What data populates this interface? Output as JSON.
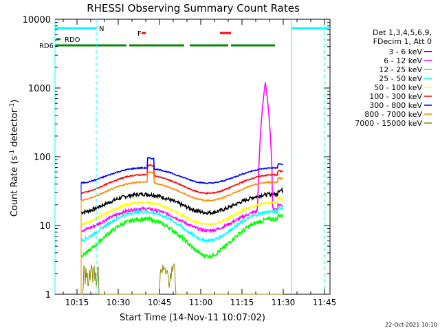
{
  "chart_data": {
    "type": "line",
    "title": "RHESSI Observing Summary Count Rates",
    "xlabel": "Start Time (14-Nov-11 10:07:02)",
    "ylabel_prefix": "Count Rate (s",
    "ylabel_sup": "-1",
    "ylabel_mid": " detector",
    "ylabel_suffix": ")",
    "x_range_minutes": [
      0,
      100
    ],
    "x_ticks": [
      {
        "min": 8,
        "label": "10:15"
      },
      {
        "min": 23,
        "label": "10:30"
      },
      {
        "min": 38,
        "label": "10:45"
      },
      {
        "min": 53,
        "label": "11:00"
      },
      {
        "min": 68,
        "label": "11:15"
      },
      {
        "min": 83,
        "label": "11:30"
      },
      {
        "min": 98,
        "label": "11:45"
      }
    ],
    "y_scale": "log",
    "y_range": [
      1,
      10000
    ],
    "y_ticks": [
      {
        "v": 1,
        "label": "1"
      },
      {
        "v": 10,
        "label": "10"
      },
      {
        "v": 100,
        "label": "100"
      },
      {
        "v": 1000,
        "label": "1000"
      },
      {
        "v": 10000,
        "label": "10000"
      }
    ],
    "legend_header": [
      "Det 1,3,4,5,6,9,",
      "FDecim 1, Att 0"
    ],
    "legend_position": "right",
    "series": [
      {
        "name": "3 - 6 keV",
        "color": "#000000",
        "base": 22,
        "amp": 0.3,
        "jit": 0.06
      },
      {
        "name": "6 - 12 keV",
        "color": "#ff00ff",
        "base": 13,
        "amp": 0.35,
        "jit": 0.05,
        "flare": 1200
      },
      {
        "name": "12 - 25 keV",
        "color": "#00ff00",
        "base": 8,
        "amp": 0.55,
        "jit": 0.07
      },
      {
        "name": "25 - 50 keV",
        "color": "#00ffff",
        "base": 11,
        "amp": 0.45,
        "jit": 0.05
      },
      {
        "name": "50 - 100 keV",
        "color": "#ffff00",
        "base": 16,
        "amp": 0.35,
        "jit": 0.04
      },
      {
        "name": "100 - 300 keV",
        "color": "#ff0000",
        "base": 42,
        "amp": 0.3,
        "jit": 0.02
      },
      {
        "name": "300 - 800 keV",
        "color": "#0000ff",
        "base": 55,
        "amp": 0.25,
        "jit": 0.02
      },
      {
        "name": "800 - 7000 keV",
        "color": "#ff8800",
        "base": 33,
        "amp": 0.3,
        "jit": 0.02
      },
      {
        "name": "7000 - 15000 keV",
        "color": "#888800",
        "base": 2,
        "amp": 0.0,
        "jit": 0.0
      }
    ],
    "flags": {
      "N_label": "N",
      "F_label": "F",
      "RDO_label": "RDO",
      "RD6_label": "RD6",
      "night": [
        [
          0,
          15
        ],
        [
          86,
          100
        ]
      ],
      "flare_flag": [
        [
          31.5,
          33
        ],
        [
          60,
          64
        ]
      ],
      "rdo": [
        [
          0.5,
          2.0
        ]
      ],
      "rd6": [
        [
          0,
          26
        ],
        [
          27,
          47
        ],
        [
          49,
          63
        ],
        [
          64,
          80
        ]
      ],
      "saa_vlines": [
        15,
        86,
        98
      ]
    },
    "footer": "22-Oct-2021 10:10"
  }
}
